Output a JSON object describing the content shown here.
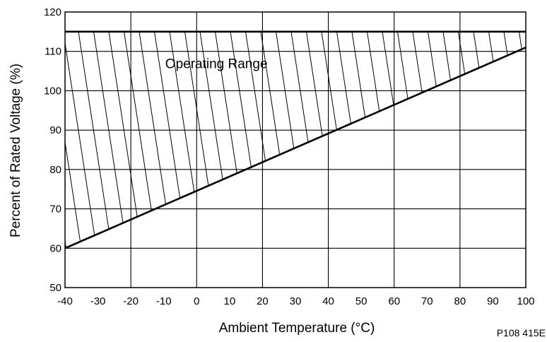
{
  "chart_data": {
    "type": "area",
    "xlabel": "Ambient Temperature (°C)",
    "ylabel": "Percent of Rated Voltage (%)",
    "xlim": [
      -40,
      100
    ],
    "ylim": [
      50,
      120
    ],
    "x_ticks": [
      -40,
      -30,
      -20,
      -10,
      0,
      10,
      20,
      30,
      40,
      50,
      60,
      70,
      80,
      90,
      100
    ],
    "y_ticks": [
      50,
      60,
      70,
      80,
      90,
      100,
      110,
      120
    ],
    "x_gridlines": [
      -40,
      -20,
      0,
      20,
      40,
      60,
      80,
      100
    ],
    "y_gridlines": [
      50,
      60,
      70,
      80,
      90,
      100,
      110,
      120
    ],
    "grid": true,
    "series": [
      {
        "x": [
          -40,
          100
        ],
        "values": [
          115,
          115
        ]
      },
      {
        "x": [
          -40,
          100
        ],
        "values": [
          60,
          111
        ]
      }
    ],
    "fill": "hatched region between the upper and lower lines",
    "annotations": [
      {
        "text": "Operating Range",
        "x": 12,
        "y": 107
      }
    ],
    "figure_code": "P108 415E"
  }
}
